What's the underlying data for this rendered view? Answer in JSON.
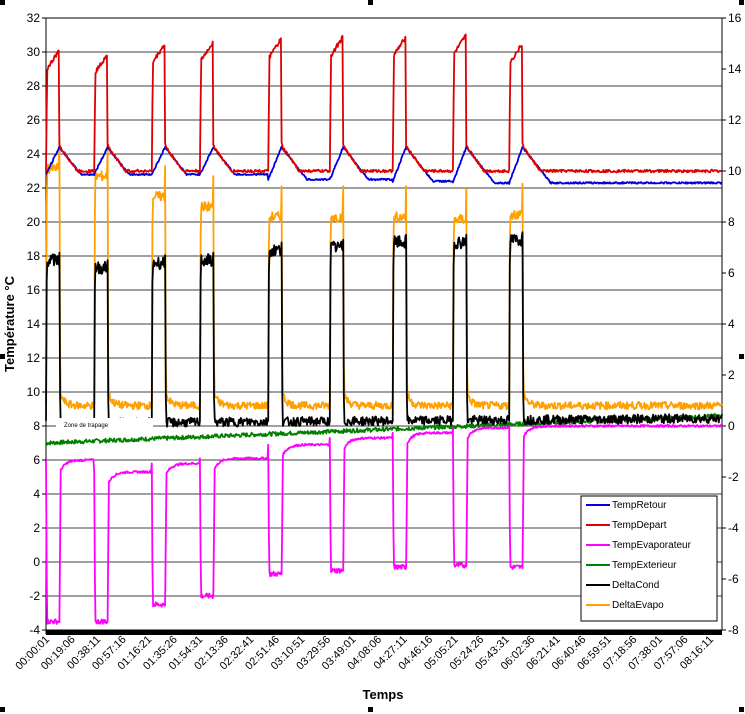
{
  "chart_data": {
    "type": "line",
    "xlabel": "Temps",
    "ylabel": "Température °C",
    "ylim": [
      -4,
      32
    ],
    "y2lim": [
      -8,
      16
    ],
    "left_ticks": [
      "-4",
      "-2",
      "0",
      "2",
      "4",
      "6",
      "8",
      "10",
      "12",
      "14",
      "16",
      "18",
      "20",
      "22",
      "24",
      "26",
      "28",
      "30",
      "32"
    ],
    "right_ticks": [
      "-8",
      "-6",
      "-4",
      "-2",
      "0",
      "2",
      "4",
      "6",
      "8",
      "10",
      "12",
      "14",
      "16"
    ],
    "x_tick_labels": [
      "00:00:01",
      "00:19:06",
      "00:38:11",
      "00:57:16",
      "01:16:21",
      "01:35:26",
      "01:54:31",
      "02:13:36",
      "02:32:41",
      "02:51:46",
      "03:10:51",
      "03:29:56",
      "03:49:01",
      "04:08:06",
      "04:27:11",
      "04:46:16",
      "05:05:21",
      "05:24:26",
      "05:43:31",
      "06:02:36",
      "06:21:41",
      "06:40:46",
      "06:59:51",
      "07:18:56",
      "07:38:01",
      "07:57:06",
      "08:16:11"
    ],
    "grid": true,
    "legend_position": "bottom-right",
    "cycle_starts_minutes": [
      0,
      36,
      79,
      115,
      166,
      212,
      259,
      304,
      346
    ],
    "annotation": "Zone de trapage",
    "series": [
      {
        "name": "TempRetour",
        "axis": "left",
        "color": "#0000dd",
        "cycle_peak": 24.4,
        "cycle_trough_start": [
          22.8,
          22.8,
          22.8,
          22.8,
          22.5,
          22.5,
          22.4,
          22.3,
          22.3
        ]
      },
      {
        "name": "TempDepart",
        "axis": "left",
        "color": "#dd0000",
        "cycle_peaks": [
          30.1,
          29.9,
          30.5,
          30.6,
          30.8,
          30.9,
          30.9,
          31.0,
          30.5
        ],
        "cycle_trough": 23.0
      },
      {
        "name": "TempEvaporateur",
        "axis": "left",
        "color": "#ff00ff",
        "cycle_lows": [
          -3.5,
          -3.5,
          -2.5,
          -2.0,
          -0.7,
          -0.5,
          -0.3,
          -0.2,
          -0.3
        ],
        "off_values": [
          6.0,
          5.3,
          5.8,
          6.1,
          6.9,
          7.3,
          7.6,
          7.9,
          8.0
        ]
      },
      {
        "name": "TempExterieur",
        "axis": "left",
        "color": "#008000",
        "start": 7.0,
        "end": 8.6
      },
      {
        "name": "DeltaCond",
        "axis": "right",
        "color": "#000000",
        "cycle_peaks": [
          6.8,
          6.5,
          6.7,
          6.8,
          7.2,
          7.3,
          7.5,
          7.5,
          7.6
        ],
        "off_value": 0.1
      },
      {
        "name": "DeltaEvapo",
        "axis": "right",
        "color": "#ffa000",
        "cycle_peaks": [
          10.3,
          10.0,
          9.2,
          8.8,
          8.4,
          8.4,
          8.4,
          8.3,
          8.5
        ],
        "off_value": 0.8
      }
    ]
  }
}
